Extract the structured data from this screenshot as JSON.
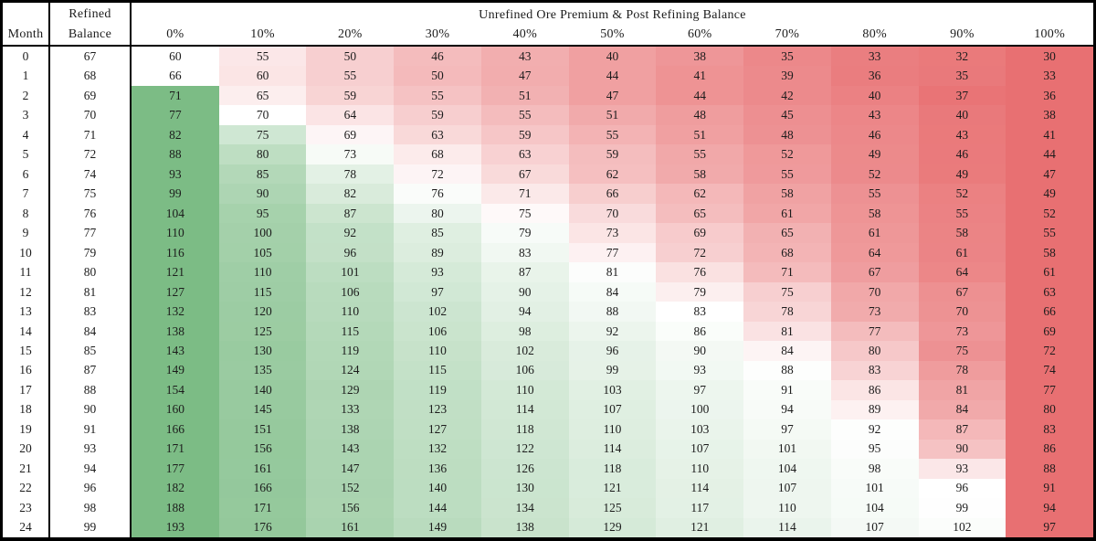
{
  "colors": {
    "scale_min_red": "#E87072",
    "scale_mid_white": "#FFFFFF",
    "scale_max_green": "#7CBC85",
    "border": "#000000",
    "text": "#1C1C1C"
  },
  "chart_data": {
    "type": "heatmap",
    "title": "Unrefined Ore Premium & Post Refining Balance",
    "corner": {
      "month": "Month",
      "refined_line1": "Refined",
      "refined_line2": "Balance"
    },
    "column_labels": [
      "0%",
      "10%",
      "20%",
      "30%",
      "40%",
      "50%",
      "60%",
      "70%",
      "80%",
      "90%",
      "100%"
    ],
    "months": [
      0,
      1,
      2,
      3,
      4,
      5,
      6,
      7,
      8,
      9,
      10,
      11,
      12,
      13,
      14,
      15,
      16,
      17,
      18,
      19,
      20,
      21,
      22,
      23,
      24
    ],
    "refined_balance": [
      67,
      68,
      69,
      70,
      71,
      72,
      74,
      75,
      76,
      77,
      79,
      80,
      81,
      83,
      84,
      85,
      87,
      88,
      90,
      91,
      93,
      94,
      96,
      98,
      99
    ],
    "values": [
      [
        60,
        55,
        50,
        46,
        43,
        40,
        38,
        35,
        33,
        32,
        30
      ],
      [
        66,
        60,
        55,
        50,
        47,
        44,
        41,
        39,
        36,
        35,
        33
      ],
      [
        71,
        65,
        59,
        55,
        51,
        47,
        44,
        42,
        40,
        37,
        36
      ],
      [
        77,
        70,
        64,
        59,
        55,
        51,
        48,
        45,
        43,
        40,
        38
      ],
      [
        82,
        75,
        69,
        63,
        59,
        55,
        51,
        48,
        46,
        43,
        41
      ],
      [
        88,
        80,
        73,
        68,
        63,
        59,
        55,
        52,
        49,
        46,
        44
      ],
      [
        93,
        85,
        78,
        72,
        67,
        62,
        58,
        55,
        52,
        49,
        47
      ],
      [
        99,
        90,
        82,
        76,
        71,
        66,
        62,
        58,
        55,
        52,
        49
      ],
      [
        104,
        95,
        87,
        80,
        75,
        70,
        65,
        61,
        58,
        55,
        52
      ],
      [
        110,
        100,
        92,
        85,
        79,
        73,
        69,
        65,
        61,
        58,
        55
      ],
      [
        116,
        105,
        96,
        89,
        83,
        77,
        72,
        68,
        64,
        61,
        58
      ],
      [
        121,
        110,
        101,
        93,
        87,
        81,
        76,
        71,
        67,
        64,
        61
      ],
      [
        127,
        115,
        106,
        97,
        90,
        84,
        79,
        75,
        70,
        67,
        63
      ],
      [
        132,
        120,
        110,
        102,
        94,
        88,
        83,
        78,
        73,
        70,
        66
      ],
      [
        138,
        125,
        115,
        106,
        98,
        92,
        86,
        81,
        77,
        73,
        69
      ],
      [
        143,
        130,
        119,
        110,
        102,
        96,
        90,
        84,
        80,
        75,
        72
      ],
      [
        149,
        135,
        124,
        115,
        106,
        99,
        93,
        88,
        83,
        78,
        74
      ],
      [
        154,
        140,
        129,
        119,
        110,
        103,
        97,
        91,
        86,
        81,
        77
      ],
      [
        160,
        145,
        133,
        123,
        114,
        107,
        100,
        94,
        89,
        84,
        80
      ],
      [
        166,
        151,
        138,
        127,
        118,
        110,
        103,
        97,
        92,
        87,
        83
      ],
      [
        171,
        156,
        143,
        132,
        122,
        114,
        107,
        101,
        95,
        90,
        86
      ],
      [
        177,
        161,
        147,
        136,
        126,
        118,
        110,
        104,
        98,
        93,
        88
      ],
      [
        182,
        166,
        152,
        140,
        130,
        121,
        114,
        107,
        101,
        96,
        91
      ],
      [
        188,
        171,
        156,
        144,
        134,
        125,
        117,
        110,
        104,
        99,
        94
      ],
      [
        193,
        176,
        161,
        149,
        138,
        129,
        121,
        114,
        107,
        102,
        97
      ]
    ],
    "color_scale_rule": "per-row 3-color scale: row min = red, row refined balance = white midpoint, row max = green",
    "layout": {
      "grid": "off",
      "legend": "none"
    }
  }
}
